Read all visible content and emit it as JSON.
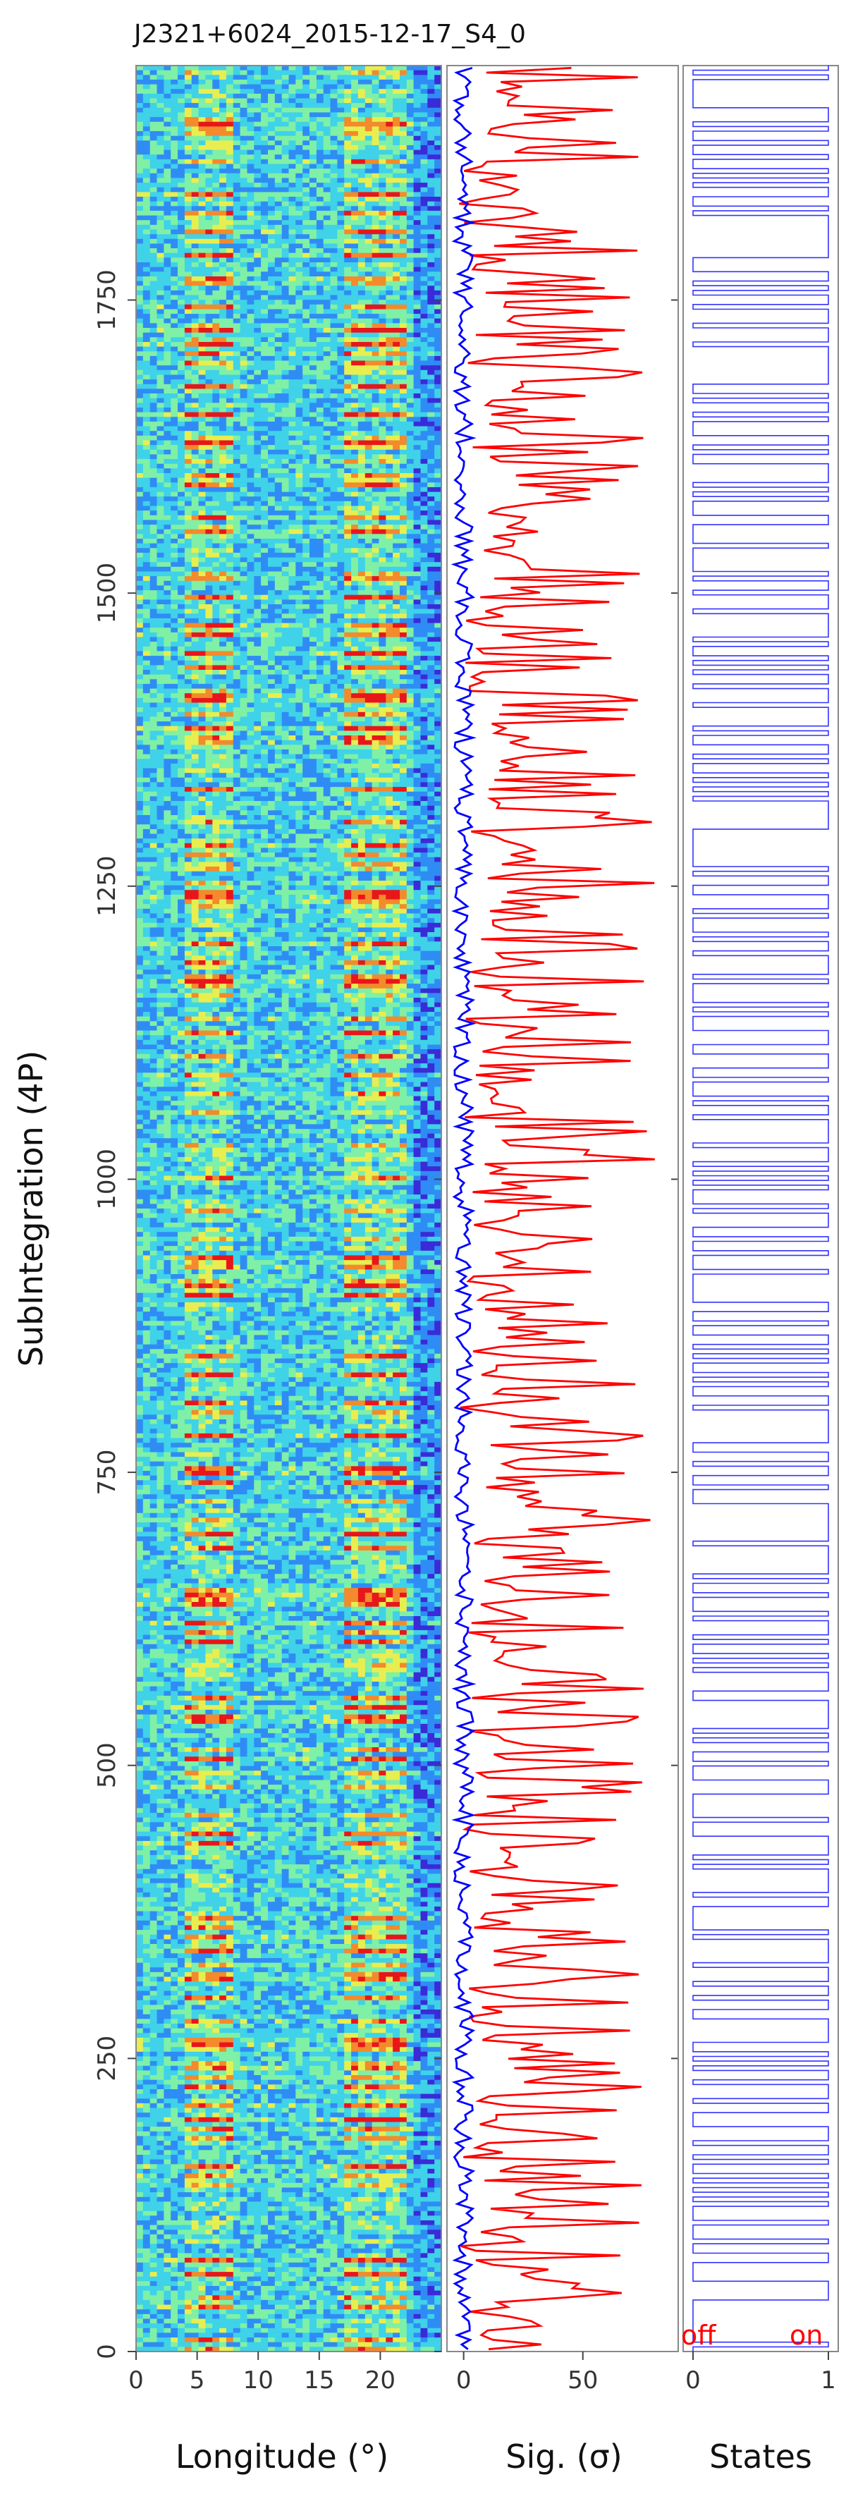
{
  "chart_data": [
    {
      "type": "heatmap",
      "title": "J2321+6024_2015-12-17_S4_0",
      "xlabel": "Longitude (°)",
      "ylabel": "SubIntegration (4P)",
      "xlim": [
        0,
        25
      ],
      "ylim": [
        0,
        1950
      ],
      "x_ticks": [
        "0",
        "5",
        "10",
        "15",
        "20"
      ],
      "y_ticks": [
        "0",
        "250",
        "500",
        "750",
        "1000",
        "1250",
        "1500",
        "1750"
      ],
      "colormap": [
        "#3a2bd8",
        "#2f8cf5",
        "#3fd2e8",
        "#7ff0a6",
        "#e8ee50",
        "#f38a2c",
        "#e8161a"
      ],
      "on_pulse_longitude_ranges": [
        [
          4,
          8
        ],
        [
          17,
          22
        ]
      ]
    },
    {
      "type": "line",
      "xlabel": "Sig. (σ)",
      "xlim": [
        -7,
        90
      ],
      "x_ticks": [
        "0",
        "50"
      ],
      "series": [
        {
          "role": "on-pulse",
          "color": "#ff0000"
        },
        {
          "role": "off-pulse",
          "color": "#0000ff"
        }
      ]
    },
    {
      "type": "line",
      "xlabel": "States",
      "xlim": [
        0,
        1
      ],
      "x_ticks": [
        "0",
        "1"
      ],
      "state_labels": {
        "off": "off",
        "on": "on"
      },
      "state_label_color": "#ff0000",
      "line_color": "#0000ff",
      "state_fraction_on": 0.62
    }
  ]
}
